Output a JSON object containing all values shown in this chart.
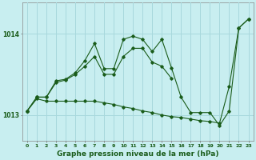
{
  "title": "Graphe pression niveau de la mer (hPa)",
  "bg_color": "#c8eef0",
  "grid_color": "#a8d8dc",
  "line_color": "#1a5c1a",
  "x_hours": [
    0,
    1,
    2,
    3,
    4,
    5,
    6,
    7,
    8,
    9,
    10,
    11,
    12,
    13,
    14,
    15,
    16,
    17,
    18,
    19,
    20,
    21,
    22,
    23
  ],
  "line1": [
    1013.05,
    1013.22,
    1013.22,
    1013.42,
    1013.44,
    1013.52,
    1013.67,
    1013.88,
    1013.57,
    1013.57,
    1013.93,
    1013.97,
    1013.93,
    1013.78,
    1013.93,
    1013.58,
    1013.22,
    1013.03,
    1013.03,
    1013.03,
    1012.87,
    1013.05,
    1014.07,
    1014.18
  ],
  "line2": [
    1013.05,
    1013.22,
    1013.22,
    1013.4,
    1013.43,
    1013.5,
    1013.6,
    1013.72,
    1013.5,
    1013.5,
    1013.72,
    1013.82,
    1013.82,
    1013.65,
    1013.6,
    1013.45,
    null,
    null,
    null,
    null,
    null,
    null,
    null,
    null
  ],
  "line3": [
    1013.05,
    1013.2,
    1013.17,
    1013.17,
    1013.17,
    1013.17,
    1013.17,
    1013.17,
    1013.15,
    1013.13,
    1013.1,
    1013.08,
    1013.05,
    1013.03,
    1013.0,
    1012.98,
    1012.97,
    1012.95,
    1012.93,
    1012.92,
    1012.9,
    1013.35,
    1014.07,
    1014.18
  ],
  "ylim_min": 1012.68,
  "ylim_max": 1014.38,
  "yticks": [
    1013,
    1014
  ],
  "title_fontsize": 6.5
}
